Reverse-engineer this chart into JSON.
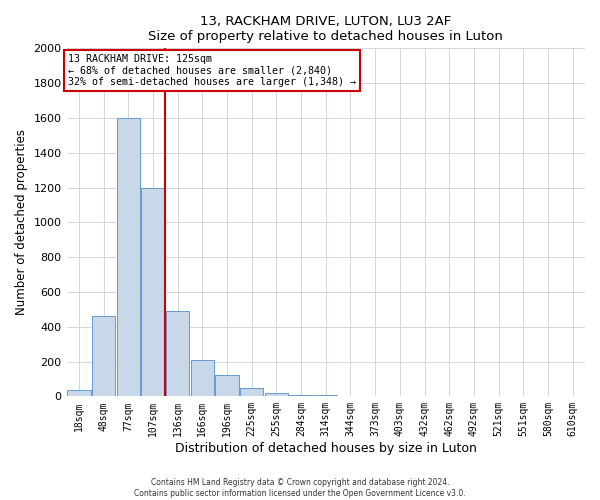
{
  "title": "13, RACKHAM DRIVE, LUTON, LU3 2AF",
  "subtitle": "Size of property relative to detached houses in Luton",
  "xlabel": "Distribution of detached houses by size in Luton",
  "ylabel": "Number of detached properties",
  "bar_labels": [
    "18sqm",
    "48sqm",
    "77sqm",
    "107sqm",
    "136sqm",
    "166sqm",
    "196sqm",
    "225sqm",
    "255sqm",
    "284sqm",
    "314sqm",
    "344sqm",
    "373sqm",
    "403sqm",
    "432sqm",
    "462sqm",
    "492sqm",
    "521sqm",
    "551sqm",
    "580sqm",
    "610sqm"
  ],
  "bar_values": [
    35,
    460,
    1600,
    1200,
    490,
    210,
    120,
    50,
    20,
    10,
    5,
    0,
    0,
    0,
    0,
    0,
    0,
    0,
    0,
    0,
    0
  ],
  "bar_color": "#c8d8e8",
  "bar_edge_color": "#6699cc",
  "ylim": [
    0,
    2000
  ],
  "yticks": [
    0,
    200,
    400,
    600,
    800,
    1000,
    1200,
    1400,
    1600,
    1800,
    2000
  ],
  "vline_x": 3.5,
  "vline_color": "#cc0000",
  "annotation_title": "13 RACKHAM DRIVE: 125sqm",
  "annotation_line1": "← 68% of detached houses are smaller (2,840)",
  "annotation_line2": "32% of semi-detached houses are larger (1,348) →",
  "annotation_box_color": "#ffffff",
  "annotation_box_edge": "#cc0000",
  "footer1": "Contains HM Land Registry data © Crown copyright and database right 2024.",
  "footer2": "Contains public sector information licensed under the Open Government Licence v3.0.",
  "bg_color": "#ffffff",
  "grid_color": "#d0d8e0"
}
